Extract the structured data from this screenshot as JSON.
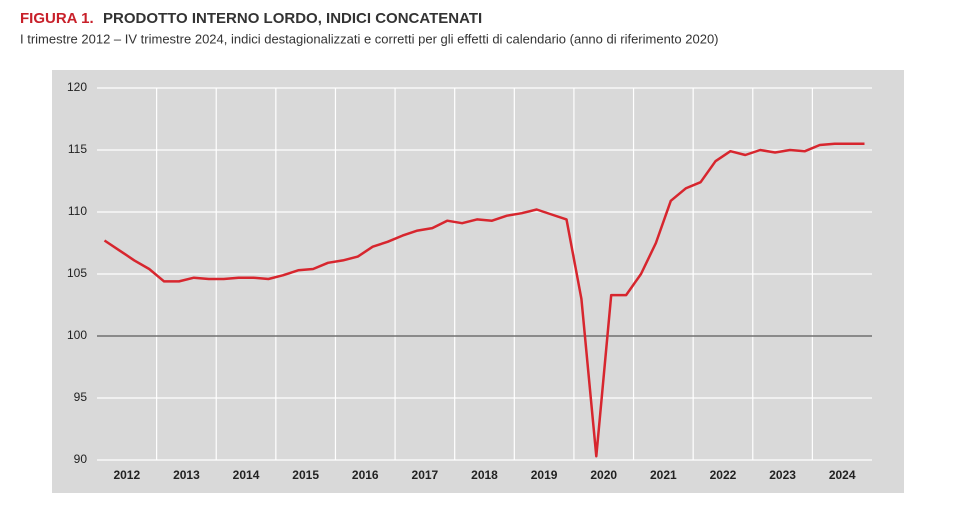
{
  "chart_data": {
    "type": "line",
    "title_prefix": "FIGURA 1.",
    "title": "PRODOTTO INTERNO LORDO, INDICI CONCATENATI",
    "subtitle": "I trimestre 2012 – IV trimestre 2024, indici destagionalizzati e corretti per gli effetti di calendario (anno di riferimento 2020)",
    "categories": [
      null,
      "2012",
      null,
      null,
      null,
      "2013",
      null,
      null,
      null,
      "2014",
      null,
      null,
      null,
      "2015",
      null,
      null,
      null,
      "2016",
      null,
      null,
      null,
      "2017",
      null,
      null,
      null,
      "2018",
      null,
      null,
      null,
      "2019",
      null,
      null,
      null,
      "2020",
      null,
      null,
      null,
      "2021",
      null,
      null,
      null,
      "2022",
      null,
      null,
      null,
      "2023",
      null,
      null,
      null,
      "2024",
      null,
      null
    ],
    "series": [
      {
        "color": "#d7262e",
        "values": [
          107.7,
          106.9,
          106.1,
          105.4,
          104.4,
          104.4,
          104.7,
          104.6,
          104.6,
          104.7,
          104.7,
          104.6,
          104.9,
          105.3,
          105.4,
          105.9,
          106.1,
          106.4,
          107.2,
          107.6,
          108.1,
          108.5,
          108.7,
          109.3,
          109.1,
          109.4,
          109.3,
          109.7,
          109.9,
          110.2,
          109.8,
          109.4,
          103.0,
          90.3,
          103.3,
          103.3,
          105.0,
          107.5,
          110.9,
          111.9,
          112.4,
          114.1,
          114.9,
          114.6,
          115.0,
          114.8,
          115.0,
          114.9,
          115.4,
          115.5,
          115.5,
          115.5
        ]
      }
    ],
    "ylim": [
      90,
      120
    ],
    "yticks": [
      90,
      95,
      100,
      105,
      110,
      115,
      120
    ],
    "grid": true,
    "baseline": 100
  }
}
